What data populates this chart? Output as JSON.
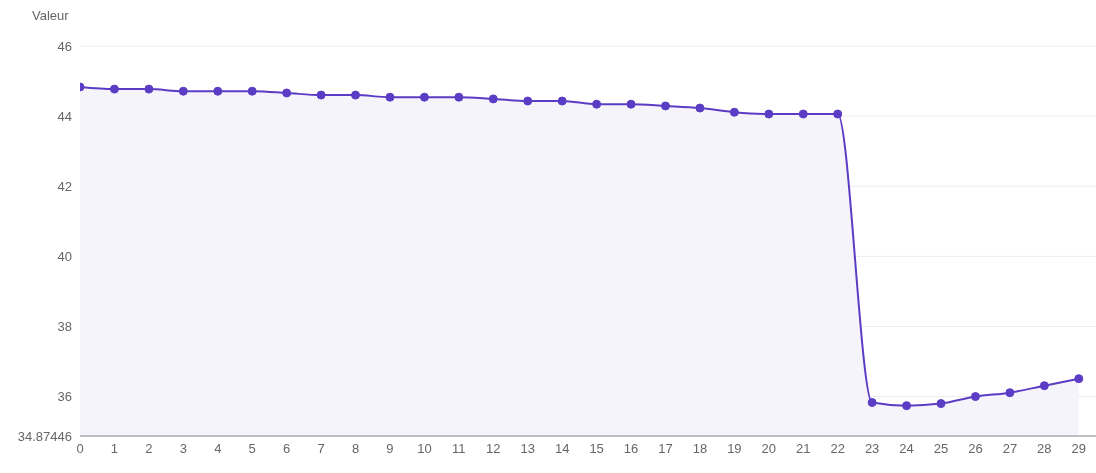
{
  "chart_data": {
    "type": "area",
    "ylabel": "Valeur",
    "x": [
      0,
      1,
      2,
      3,
      4,
      5,
      6,
      7,
      8,
      9,
      10,
      11,
      12,
      13,
      14,
      15,
      16,
      17,
      18,
      19,
      20,
      21,
      22,
      23,
      24,
      25,
      26,
      27,
      28,
      29
    ],
    "series": [
      {
        "color": "#5b3cc4",
        "values": [
          44.83,
          44.77,
          44.77,
          44.71,
          44.71,
          44.71,
          44.66,
          44.6,
          44.6,
          44.54,
          44.54,
          44.54,
          44.49,
          44.43,
          44.43,
          44.34,
          44.34,
          44.29,
          44.23,
          44.11,
          44.06,
          44.06,
          44.06,
          35.83,
          35.74,
          35.8,
          36.0,
          36.11,
          36.31,
          36.51
        ]
      }
    ],
    "xlim": [
      0,
      29.5
    ],
    "xticks": [
      0,
      1,
      2,
      3,
      4,
      5,
      6,
      7,
      8,
      9,
      10,
      11,
      12,
      13,
      14,
      15,
      16,
      17,
      18,
      19,
      20,
      21,
      22,
      23,
      24,
      25,
      26,
      27,
      28,
      29
    ],
    "ylim": [
      34.87446,
      46
    ],
    "yticks": [
      34.87446,
      36,
      38,
      40,
      42,
      44,
      46
    ],
    "grid": "y",
    "marker": "circle",
    "legend": false
  }
}
